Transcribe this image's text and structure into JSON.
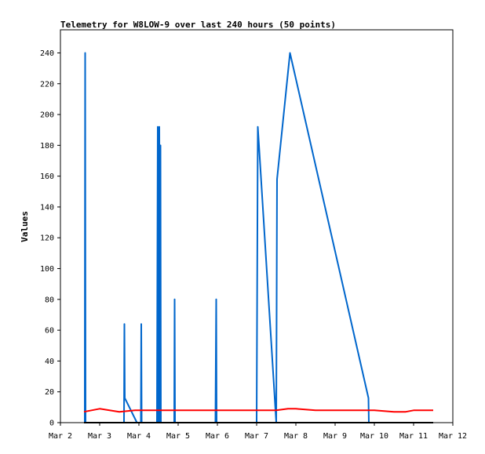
{
  "chart_data": {
    "type": "line",
    "title": "Telemetry for W8LOW-9 over last 240 hours (50 points)",
    "xlabel": "",
    "ylabel": "Values",
    "ylim": [
      0,
      255
    ],
    "xlim": [
      2.0,
      12.0
    ],
    "yticks": [
      0,
      20,
      40,
      60,
      80,
      100,
      120,
      140,
      160,
      180,
      200,
      220,
      240
    ],
    "xticks": [
      {
        "value": 2,
        "label": "Mar 2"
      },
      {
        "value": 3,
        "label": "Mar 3"
      },
      {
        "value": 4,
        "label": "Mar 4"
      },
      {
        "value": 5,
        "label": "Mar 5"
      },
      {
        "value": 6,
        "label": "Mar 6"
      },
      {
        "value": 7,
        "label": "Mar 7"
      },
      {
        "value": 8,
        "label": "Mar 8"
      },
      {
        "value": 9,
        "label": "Mar 9"
      },
      {
        "value": 10,
        "label": "Mar 10"
      },
      {
        "value": 11,
        "label": "Mar 11"
      },
      {
        "value": 12,
        "label": "Mar 12"
      }
    ],
    "grid": false,
    "series": [
      {
        "color": "#0066cc",
        "x": [
          2.62,
          2.63,
          2.64,
          3.62,
          3.63,
          3.64,
          3.95,
          4.05,
          4.06,
          4.07,
          4.46,
          4.48,
          4.5,
          4.52,
          4.54,
          4.55,
          4.56,
          4.9,
          4.91,
          4.92,
          5.95,
          5.97,
          5.98,
          7.0,
          7.03,
          7.06,
          7.5,
          7.52,
          7.85,
          9.85,
          9.86
        ],
        "y": [
          0,
          240,
          0,
          0,
          64,
          16,
          0,
          0,
          64,
          0,
          0,
          192,
          0,
          192,
          0,
          180,
          0,
          0,
          80,
          0,
          0,
          80,
          0,
          0,
          192,
          180,
          0,
          158,
          240,
          16,
          0
        ]
      },
      {
        "color": "#ff0000",
        "x": [
          2.6,
          3.0,
          3.5,
          3.9,
          4.0,
          5.0,
          6.0,
          7.0,
          7.5,
          7.8,
          8.0,
          8.5,
          9.0,
          9.5,
          10.0,
          10.5,
          10.8,
          11.0,
          11.5
        ],
        "y": [
          7,
          9,
          7,
          8,
          8,
          8,
          8,
          8,
          8,
          9,
          9,
          8,
          8,
          8,
          8,
          7,
          7,
          8,
          8
        ]
      },
      {
        "color": "#000000",
        "x": [
          2.6,
          11.5
        ],
        "y": [
          0,
          0
        ]
      }
    ]
  }
}
